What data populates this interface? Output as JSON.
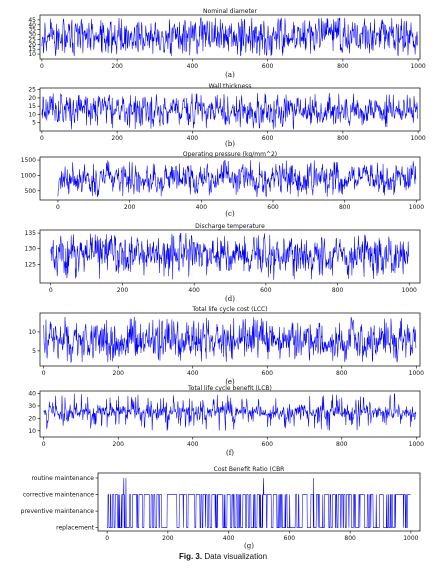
{
  "figure": {
    "caption_label": "Fig. 3.",
    "caption_text": "Data visualization"
  },
  "colors": {
    "line": "#0000ff",
    "axis": "#000000",
    "text": "#111111"
  },
  "chart_data": [
    {
      "id": "a",
      "type": "line",
      "title": "Nominal diameter",
      "panel_label": "(a)",
      "xlabel": "",
      "ylabel": "",
      "xlim": [
        -5,
        1005
      ],
      "ylim": [
        5,
        50
      ],
      "xticks": [
        0,
        200,
        400,
        600,
        800,
        1000
      ],
      "yticks": [
        10,
        15,
        20,
        25,
        30,
        35,
        40,
        45
      ],
      "series": [
        {
          "n": 1000,
          "min": 8,
          "max": 47,
          "mean": 28,
          "spread": 15,
          "drift": 0.35,
          "seed": 11
        }
      ]
    },
    {
      "id": "b",
      "type": "line",
      "title": "Wall thickness",
      "panel_label": "(b)",
      "xlabel": "",
      "ylabel": "",
      "xlim": [
        -5,
        1005
      ],
      "ylim": [
        0,
        26
      ],
      "xticks": [
        0,
        200,
        400,
        600,
        800,
        1000
      ],
      "yticks": [
        5,
        10,
        15,
        20,
        25
      ],
      "series": [
        {
          "n": 1000,
          "min": 1,
          "max": 23,
          "mean": 12,
          "spread": 7,
          "drift": 0.4,
          "seed": 23
        }
      ]
    },
    {
      "id": "c",
      "type": "line",
      "title": "Operating pressure (kg/mm^2)",
      "panel_label": "(c)",
      "xlabel": "",
      "ylabel": "",
      "xlim": [
        -50,
        1010
      ],
      "ylim": [
        200,
        1600
      ],
      "xticks": [
        0,
        200,
        400,
        600,
        800,
        1000
      ],
      "yticks": [
        500,
        1000,
        1500
      ],
      "series": [
        {
          "n": 1000,
          "min": 300,
          "max": 1500,
          "mean": 900,
          "spread": 380,
          "drift": 0.4,
          "seed": 37
        }
      ]
    },
    {
      "id": "d",
      "type": "line",
      "title": "Discharge temperature",
      "panel_label": "(d)",
      "xlabel": "",
      "ylabel": "",
      "xlim": [
        -30,
        1030
      ],
      "ylim": [
        119,
        136
      ],
      "xticks": [
        0,
        200,
        400,
        600,
        800,
        1000
      ],
      "yticks": [
        125,
        130,
        135
      ],
      "series": [
        {
          "n": 1000,
          "min": 120,
          "max": 135,
          "mean": 128,
          "spread": 4.5,
          "drift": 0.35,
          "seed": 51
        }
      ]
    },
    {
      "id": "e",
      "type": "line",
      "title": "Total life cycle cost (LCC)",
      "panel_label": "(e)",
      "xlabel": "",
      "ylabel": "",
      "xlim": [
        -10,
        1010
      ],
      "ylim": [
        1,
        15
      ],
      "xticks": [
        0,
        200,
        400,
        600,
        800,
        1000
      ],
      "yticks": [
        5,
        10
      ],
      "series": [
        {
          "n": 1000,
          "min": 2,
          "max": 14,
          "mean": 8,
          "spread": 3.8,
          "drift": 0.35,
          "seed": 67
        }
      ]
    },
    {
      "id": "f",
      "type": "line",
      "title": "Total life cycle benefit (LCB)",
      "panel_label": "(f)",
      "xlabel": "",
      "ylabel": "",
      "xlim": [
        -10,
        1010
      ],
      "ylim": [
        5,
        42
      ],
      "xticks": [
        0,
        200,
        400,
        600,
        800,
        1000
      ],
      "yticks": [
        10,
        20,
        30,
        40
      ],
      "series": [
        {
          "n": 1000,
          "min": 10,
          "max": 40,
          "mean": 25,
          "spread": 5,
          "drift": 0.3,
          "seed": 83
        }
      ]
    },
    {
      "id": "g",
      "type": "line",
      "title": "Cost Benefit Ratio (CBR",
      "panel_label": "(g)",
      "xlabel": "",
      "ylabel": "",
      "xlim": [
        -30,
        1030
      ],
      "ylim": [
        -0.2,
        3.3
      ],
      "xticks": [
        0,
        200,
        400,
        600,
        800,
        1000
      ],
      "yticks": [
        0,
        1,
        2,
        3
      ],
      "ytick_labels": [
        "replacement",
        "preventive maintenance",
        "corrective maintenance",
        "routine maintenance"
      ],
      "categorical": true,
      "series": [
        {
          "n": 1000,
          "levels": [
            0,
            2
          ],
          "switch_prob": 0.18,
          "spikes": [
            55,
            62,
            515,
            680
          ],
          "seed": 97
        }
      ]
    }
  ]
}
